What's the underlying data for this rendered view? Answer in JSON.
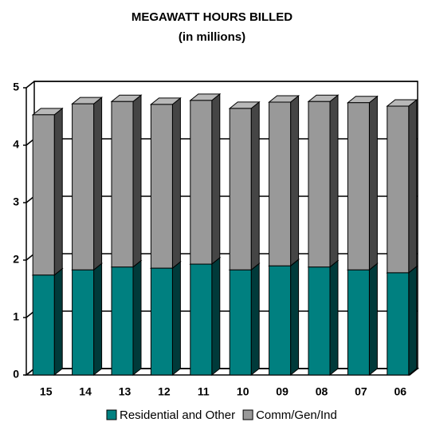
{
  "chart_data": {
    "type": "bar3d_stacked",
    "title": "MEGAWATT HOURS BILLED",
    "subtitle": "(in millions)",
    "categories": [
      "15",
      "14",
      "13",
      "12",
      "11",
      "10",
      "09",
      "08",
      "07",
      "06"
    ],
    "series": [
      {
        "name": "Residential and Other",
        "color": "#008080",
        "values": [
          1.74,
          1.83,
          1.88,
          1.86,
          1.93,
          1.83,
          1.9,
          1.88,
          1.83,
          1.78
        ]
      },
      {
        "name": "Comm/Gen/Ind",
        "color": "#999999",
        "values": [
          2.79,
          2.89,
          2.88,
          2.85,
          2.85,
          2.81,
          2.85,
          2.88,
          2.91,
          2.9
        ]
      }
    ],
    "ylim": [
      0,
      5
    ],
    "yticks": [
      0,
      1,
      2,
      3,
      4,
      5
    ],
    "grid": true
  }
}
